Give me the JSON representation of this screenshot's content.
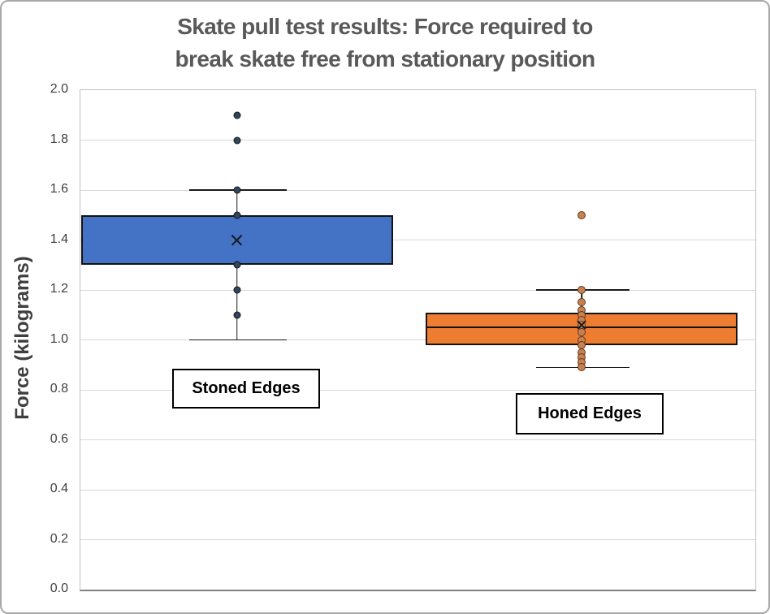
{
  "chart": {
    "title_lines": [
      "Skate pull test results: Force required to",
      "break skate free from stationary position"
    ],
    "y_axis": {
      "label": "Force (kilograms)",
      "ticks": [
        "2.0",
        "1.8",
        "1.6",
        "1.4",
        "1.2",
        "1.0",
        "0.8",
        "0.6",
        "0.4",
        "0.2",
        "0.0"
      ]
    }
  },
  "chart_data": {
    "type": "boxplot",
    "title": "Skate pull test results: Force required to break skate free from stationary position",
    "xlabel": "",
    "ylabel": "Force (kilograms)",
    "ylim": [
      0.0,
      2.0
    ],
    "ytick_step": 0.2,
    "grid": true,
    "legend": "none",
    "categories": [
      "Stoned Edges",
      "Honed Edges"
    ],
    "series": [
      {
        "name": "Stoned Edges",
        "q1": 1.3,
        "median": null,
        "q3": 1.5,
        "mean": 1.4,
        "whisker_low": 1.0,
        "whisker_high": 1.6,
        "inner_points": [
          1.6,
          1.5,
          1.3,
          1.2,
          1.1
        ],
        "outliers": [
          1.9,
          1.8
        ],
        "box_fill": "#4472C4",
        "box_stroke": "#141414",
        "point_fill": "#33465C",
        "point_stroke": "#10151B",
        "point_size": 9,
        "mean_size": 17,
        "center_frac": 0.2322,
        "box_span_frac": [
          0.0012,
          0.4633
        ],
        "cap_span_frac": [
          0.1613,
          0.3057
        ]
      },
      {
        "name": "Honed Edges",
        "q1": 0.98,
        "median": 1.05,
        "q3": 1.11,
        "mean": 1.06,
        "whisker_low": 0.89,
        "whisker_high": 1.2,
        "inner_points": [
          1.2,
          1.15,
          1.12,
          1.1,
          1.08,
          1.06,
          1.03,
          1.0,
          0.98,
          0.95,
          0.93,
          0.91,
          0.89
        ],
        "outliers": [
          1.5
        ],
        "box_fill": "#ED7D31",
        "box_stroke": "#141414",
        "point_fill": "#C8804F",
        "point_stroke": "#5E3A22",
        "point_size": 10,
        "mean_size": 14,
        "center_frac": 0.7425,
        "box_span_frac": [
          0.5114,
          0.9735
        ],
        "cap_span_frac": [
          0.6751,
          0.8134
        ]
      }
    ]
  },
  "annotations": {
    "stoned_label": "Stoned Edges",
    "honed_label": "Honed Edges"
  },
  "colors": {
    "title": "#595959",
    "axis_text": "#404040",
    "gridline": "#D9D9D9",
    "plot_border": "#BFBFBF"
  }
}
